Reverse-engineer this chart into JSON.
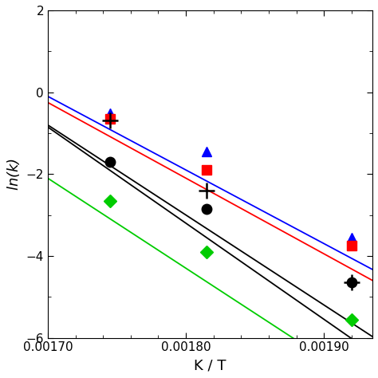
{
  "title": "",
  "xlabel": "K / T",
  "ylabel": "ln(k)",
  "xlim": [
    0.0017,
    0.001935
  ],
  "ylim": [
    -6,
    2
  ],
  "xticks": [
    0.0017,
    0.0018,
    0.0019
  ],
  "yticks": [
    -6,
    -4,
    -2,
    0,
    2
  ],
  "markers": [
    {
      "name": "blue_triangles",
      "x_data": [
        0.001745,
        0.001815,
        0.00192
      ],
      "y_data": [
        -0.52,
        -1.45,
        -3.55
      ],
      "marker": "^",
      "color": "#0000FF",
      "ms": 9
    },
    {
      "name": "red_squares",
      "x_data": [
        0.001745,
        0.001815,
        0.00192
      ],
      "y_data": [
        -0.65,
        -1.9,
        -3.75
      ],
      "marker": "s",
      "color": "#FF0000",
      "ms": 9
    },
    {
      "name": "black_circles",
      "x_data": [
        0.001745,
        0.001815,
        0.00192
      ],
      "y_data": [
        -1.7,
        -2.85,
        -4.65
      ],
      "marker": "o",
      "color": "#000000",
      "ms": 9
    },
    {
      "name": "black_plus",
      "x_data": [
        0.001745,
        0.001815,
        0.00192
      ],
      "y_data": [
        -0.68,
        -2.4,
        -4.65
      ],
      "marker": "+",
      "color": "#000000",
      "ms": 14
    },
    {
      "name": "green_diamonds",
      "x_data": [
        0.001745,
        0.001815,
        0.00192
      ],
      "y_data": [
        -2.65,
        -3.9,
        -5.55
      ],
      "marker": "D",
      "color": "#00CC00",
      "ms": 8
    }
  ],
  "fit_lines": [
    {
      "color": "#0000FF",
      "slope": -18000,
      "intercept": 30.5
    },
    {
      "color": "#FF0000",
      "slope": -18500,
      "intercept": 31.2
    },
    {
      "color": "#000000",
      "slope": -22000,
      "intercept": 36.6
    },
    {
      "color": "#000000",
      "slope": -23500,
      "intercept": 39.1
    },
    {
      "color": "#00CC00",
      "slope": -22000,
      "intercept": 35.3
    }
  ],
  "figsize": [
    4.74,
    4.74
  ],
  "dpi": 100
}
